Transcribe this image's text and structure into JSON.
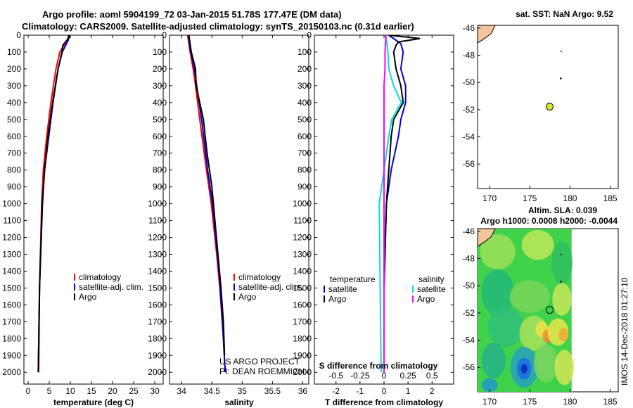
{
  "header": {
    "title_line1": "Argo profile: aoml 5904199_72 03-Jan-2015 51.78S 177.47E (DM data)",
    "title_line2": "Climatology: CARS2009. Satellite-adjusted climatology: synTS_20150103.nc (0.31d earlier)"
  },
  "map_top": {
    "title": "sat. SST: NaN Argo: 9.52"
  },
  "map_bottom": {
    "title1": "Altim. SLA: 0.039",
    "title2": "Argo h1000: 0.0008 h2000: -0.0044"
  },
  "credits": {
    "project": "US ARGO PROJECT",
    "pi": "PI: DEAN ROEMMICH",
    "imos": "IMOS 14-Dec-2018 01:27:10"
  },
  "colors": {
    "climatology": "#ff0000",
    "satellite": "#0000cc",
    "argo": "#000000",
    "sal_satellite": "#00dddd",
    "sal_argo": "#ff00ff",
    "land": "#f4c49a"
  },
  "chart_data": [
    {
      "type": "line",
      "name": "temperature",
      "xlabel": "temperature (deg C)",
      "ylabel": "",
      "xlim": [
        -1,
        32
      ],
      "ylim": [
        2070,
        0
      ],
      "xticks": [
        0,
        5,
        10,
        15,
        20,
        25,
        30
      ],
      "yticks": [
        0,
        100,
        200,
        300,
        400,
        500,
        600,
        700,
        800,
        900,
        1000,
        1100,
        1200,
        1300,
        1400,
        1500,
        1600,
        1700,
        1800,
        1900,
        2000
      ],
      "legend": [
        "climatology",
        "satellite-adj. clim.",
        "Argo"
      ],
      "legend_position": "lower-right",
      "series": [
        {
          "name": "climatology",
          "depth": [
            0,
            30,
            100,
            200,
            400,
            600,
            800,
            1000,
            1500,
            2000
          ],
          "values": [
            9.6,
            9.3,
            7.5,
            6.6,
            5.4,
            4.4,
            3.6,
            3.2,
            2.7,
            2.5
          ]
        },
        {
          "name": "satellite-adj. clim.",
          "depth": [
            0,
            30,
            100,
            200,
            400,
            600,
            800,
            1000,
            1500,
            2000
          ],
          "values": [
            9.7,
            9.5,
            8.1,
            7.1,
            5.9,
            4.9,
            3.9,
            3.3,
            2.7,
            2.4
          ]
        },
        {
          "name": "Argo",
          "depth": [
            0,
            10,
            30,
            60,
            100,
            200,
            400,
            600,
            800,
            1000,
            1500,
            2000
          ],
          "values": [
            9.5,
            9.9,
            9.2,
            8.2,
            8.0,
            7.1,
            5.8,
            4.7,
            3.9,
            3.4,
            2.7,
            2.4
          ]
        }
      ]
    },
    {
      "type": "line",
      "name": "salinity",
      "xlabel": "salinity",
      "ylabel": "",
      "xlim": [
        33.8,
        36.1
      ],
      "ylim": [
        2070,
        0
      ],
      "xticks": [
        34,
        34.5,
        35,
        35.5,
        36
      ],
      "legend": [
        "climatology",
        "satellite-adj. clim.",
        "Argo"
      ],
      "legend_position": "lower-right",
      "series": [
        {
          "name": "climatology",
          "depth": [
            0,
            100,
            200,
            300,
            500,
            800,
            1000,
            1300,
            1500,
            1800,
            2000
          ],
          "values": [
            34.1,
            34.14,
            34.19,
            34.23,
            34.3,
            34.41,
            34.49,
            34.58,
            34.63,
            34.69,
            34.72
          ]
        },
        {
          "name": "satellite-adj. clim.",
          "depth": [
            0,
            100,
            200,
            300,
            500,
            800,
            1000,
            1300,
            1500,
            1800,
            2000
          ],
          "values": [
            34.11,
            34.15,
            34.21,
            34.25,
            34.33,
            34.43,
            34.51,
            34.59,
            34.64,
            34.69,
            34.72
          ]
        },
        {
          "name": "Argo",
          "depth": [
            0,
            100,
            200,
            300,
            400,
            500,
            700,
            900,
            1100,
            1300,
            1500,
            1700,
            1900
          ],
          "values": [
            34.12,
            34.16,
            34.23,
            34.24,
            34.3,
            34.36,
            34.42,
            34.5,
            34.55,
            34.6,
            34.65,
            34.69,
            34.71
          ]
        }
      ]
    },
    {
      "type": "line",
      "name": "differences",
      "xlabel": "T difference from climatology",
      "xlabel_top": "S difference from climatology",
      "ylabel": "",
      "xlim": [
        -2.9,
        2.9
      ],
      "ylim": [
        2070,
        0
      ],
      "xticks": [
        -2,
        -1,
        0,
        1,
        2
      ],
      "sal_ticks": [
        -0.5,
        -0.25,
        0,
        0.25,
        0.5
      ],
      "sal_tick_labels": [
        "-0.5",
        "-0.25",
        "0",
        "0.25",
        "0.5"
      ],
      "legend_left_title": "temperature",
      "legend_right_title": "salinity",
      "legend": [
        "satellite",
        "Argo",
        "satellite",
        "Argo"
      ],
      "legend_position": "lower-center",
      "series": [
        {
          "name": "temperature satellite",
          "depth": [
            0,
            50,
            100,
            200,
            300,
            400,
            500,
            600,
            800,
            1000,
            1500,
            2000
          ],
          "values": [
            0.2,
            0.7,
            0.8,
            0.7,
            0.9,
            0.9,
            0.7,
            0.6,
            0.3,
            0.1,
            0.0,
            0.0
          ]
        },
        {
          "name": "temperature Argo",
          "depth": [
            0,
            20,
            40,
            60,
            100,
            200,
            300,
            400,
            500,
            600,
            800,
            1000,
            1500,
            2000
          ],
          "values": [
            0.2,
            1.5,
            0.6,
            0.5,
            0.4,
            0.5,
            0.7,
            0.8,
            0.4,
            0.3,
            0.2,
            0.1,
            0.0,
            0.0
          ]
        },
        {
          "name": "salinity satellite",
          "depth": [
            0,
            100,
            200,
            300,
            400,
            500,
            600,
            800,
            1000,
            1500,
            2000
          ],
          "values": [
            0.02,
            0.04,
            0.05,
            0.1,
            0.18,
            0.08,
            0.05,
            0.0,
            -0.05,
            -0.04,
            -0.03
          ]
        },
        {
          "name": "salinity Argo",
          "depth": [
            0,
            100,
            200,
            300,
            400,
            500,
            800,
            1000,
            1500,
            2000
          ],
          "values": [
            0.02,
            0.01,
            0.01,
            0.0,
            0.0,
            0.0,
            0.0,
            0.0,
            0.0,
            0.0
          ]
        }
      ]
    },
    {
      "type": "scatter",
      "name": "sst-map",
      "xlim": [
        168.5,
        186
      ],
      "ylim": [
        -57.8,
        -45.8
      ],
      "xticks": [
        170,
        175,
        180,
        185
      ],
      "yticks": [
        -46,
        -48,
        -50,
        -52,
        -54,
        -56
      ],
      "points": [
        {
          "lon": 177.47,
          "lat": -51.78
        }
      ]
    },
    {
      "type": "heatmap",
      "name": "sla-map",
      "xlim": [
        168.5,
        186
      ],
      "ylim": [
        -57.8,
        -45.8
      ],
      "xticks": [
        170,
        175,
        180,
        185
      ],
      "yticks": [
        -46,
        -48,
        -50,
        -52,
        -54,
        -56
      ],
      "points": [
        {
          "lon": 177.47,
          "lat": -51.78
        }
      ]
    }
  ]
}
